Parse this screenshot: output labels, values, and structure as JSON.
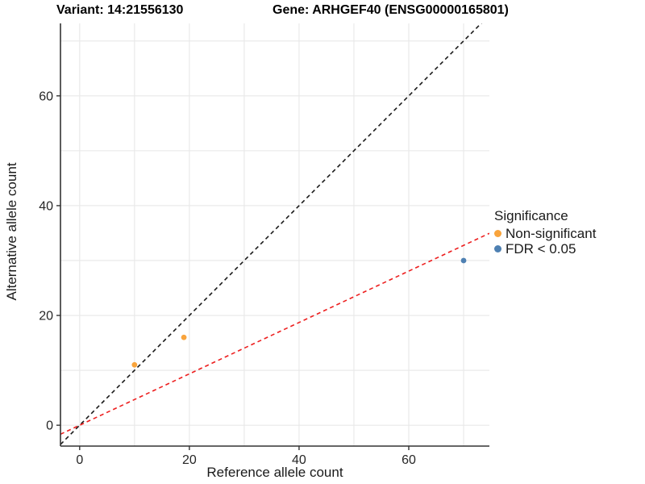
{
  "chart_data": {
    "type": "scatter",
    "title_left": "Variant: 14:21556130",
    "title_right": "Gene: ARHGEF40 (ENSG00000165801)",
    "xlabel": "Reference allele count",
    "ylabel": "Alternative allele count",
    "xlim": [
      -3.5,
      74.7
    ],
    "ylim": [
      -3.8,
      73.2
    ],
    "xticks": [
      0,
      20,
      40,
      60
    ],
    "yticks": [
      0,
      20,
      40,
      60
    ],
    "grid": {
      "step": 10,
      "min": 0,
      "max": 70,
      "color": "#e8e8e8",
      "show": true
    },
    "axis_color": "#333333",
    "tick_label_color": "#262626",
    "series": [
      {
        "name": "Non-significant",
        "color": "#F9A43C",
        "points": [
          [
            10,
            11
          ],
          [
            19,
            16
          ]
        ]
      },
      {
        "name": "FDR < 0.05",
        "color": "#4E80B2",
        "points": [
          [
            70,
            30
          ]
        ]
      }
    ],
    "lines": [
      {
        "name": "identity-line",
        "slope": 1.0,
        "intercept": 0,
        "color": "#1a1a1a",
        "style": "dashed"
      },
      {
        "name": "fit-line",
        "slope": 0.468,
        "intercept": 0,
        "color": "#ED1F1F",
        "style": "dashed"
      }
    ],
    "legend": {
      "title": "Significance",
      "position": "right"
    }
  }
}
